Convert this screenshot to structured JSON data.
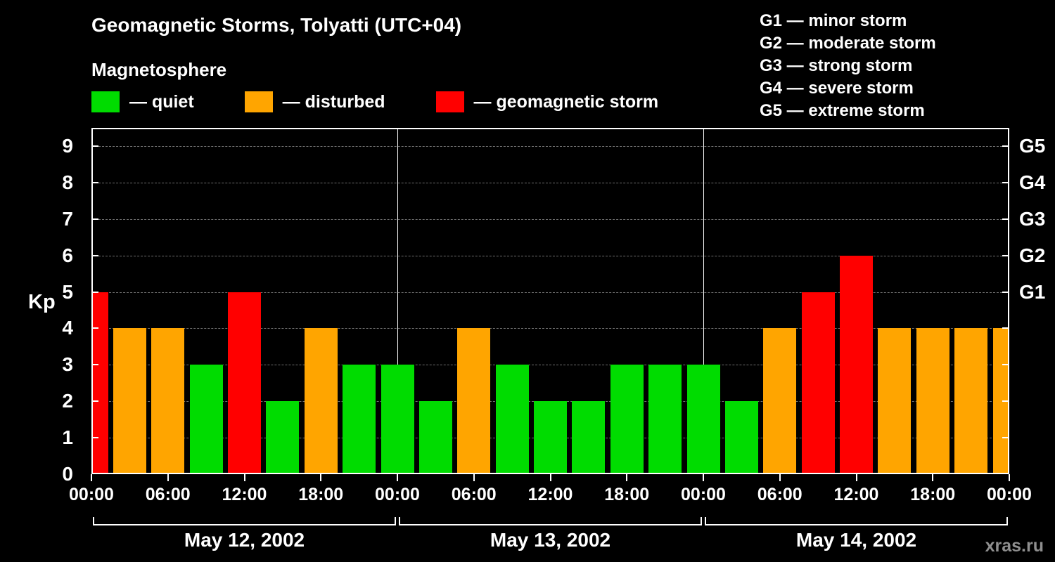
{
  "title": "Geomagnetic Storms, Tolyatti (UTC+04)",
  "subtitle": "Magnetosphere",
  "legend": {
    "quiet": "— quiet",
    "disturbed": "— disturbed",
    "storm": "— geomagnetic storm"
  },
  "g_scale_legend": [
    "G1 — minor storm",
    "G2 — moderate storm",
    "G3 — strong storm",
    "G4 — severe storm",
    "G5 — extreme storm"
  ],
  "watermark": "xras.ru",
  "colors": {
    "background": "#000000",
    "quiet": "#00DC00",
    "disturbed": "#FFA500",
    "storm": "#FF0000",
    "grid": "#707070",
    "axis": "#FFFFFF",
    "watermark": "#8F8F8F"
  },
  "chart_data": {
    "type": "bar",
    "title": "Geomagnetic Storms, Tolyatti (UTC+04)",
    "xlabel": "",
    "ylabel": "Kp",
    "ylim": [
      0,
      9.5
    ],
    "y_ticks": [
      0,
      1,
      2,
      3,
      4,
      5,
      6,
      7,
      8,
      9
    ],
    "x_tick_labels": [
      "00:00",
      "06:00",
      "12:00",
      "18:00",
      "00:00",
      "06:00",
      "12:00",
      "18:00",
      "00:00",
      "06:00",
      "12:00",
      "18:00",
      "00:00"
    ],
    "day_labels": [
      "May 12, 2002",
      "May 13, 2002",
      "May 14, 2002"
    ],
    "right_axis_labels": [
      {
        "kp": 5,
        "label": "G1"
      },
      {
        "kp": 6,
        "label": "G2"
      },
      {
        "kp": 7,
        "label": "G3"
      },
      {
        "kp": 8,
        "label": "G4"
      },
      {
        "kp": 9,
        "label": "G5"
      }
    ],
    "grid": "dashed horizontal line at each integer Kp level",
    "legend_position": "top-left",
    "bar_interval_hours": 3,
    "points": [
      {
        "t": "May 12 00:00",
        "kp": 5,
        "status": "storm"
      },
      {
        "t": "May 12 03:00",
        "kp": 4,
        "status": "disturbed"
      },
      {
        "t": "May 12 06:00",
        "kp": 4,
        "status": "disturbed"
      },
      {
        "t": "May 12 09:00",
        "kp": 3,
        "status": "quiet"
      },
      {
        "t": "May 12 12:00",
        "kp": 5,
        "status": "storm"
      },
      {
        "t": "May 12 15:00",
        "kp": 2,
        "status": "quiet"
      },
      {
        "t": "May 12 18:00",
        "kp": 4,
        "status": "disturbed"
      },
      {
        "t": "May 12 21:00",
        "kp": 3,
        "status": "quiet"
      },
      {
        "t": "May 13 00:00",
        "kp": 3,
        "status": "quiet"
      },
      {
        "t": "May 13 03:00",
        "kp": 2,
        "status": "quiet"
      },
      {
        "t": "May 13 06:00",
        "kp": 4,
        "status": "disturbed"
      },
      {
        "t": "May 13 09:00",
        "kp": 3,
        "status": "quiet"
      },
      {
        "t": "May 13 12:00",
        "kp": 2,
        "status": "quiet"
      },
      {
        "t": "May 13 15:00",
        "kp": 2,
        "status": "quiet"
      },
      {
        "t": "May 13 18:00",
        "kp": 3,
        "status": "quiet"
      },
      {
        "t": "May 13 21:00",
        "kp": 3,
        "status": "quiet"
      },
      {
        "t": "May 14 00:00",
        "kp": 3,
        "status": "quiet"
      },
      {
        "t": "May 14 03:00",
        "kp": 2,
        "status": "quiet"
      },
      {
        "t": "May 14 06:00",
        "kp": 4,
        "status": "disturbed"
      },
      {
        "t": "May 14 09:00",
        "kp": 5,
        "status": "storm"
      },
      {
        "t": "May 14 12:00",
        "kp": 6,
        "status": "storm"
      },
      {
        "t": "May 14 15:00",
        "kp": 4,
        "status": "disturbed"
      },
      {
        "t": "May 14 18:00",
        "kp": 4,
        "status": "disturbed"
      },
      {
        "t": "May 14 21:00",
        "kp": 4,
        "status": "disturbed"
      },
      {
        "t": "May 15 00:00",
        "kp": 4,
        "status": "disturbed"
      }
    ]
  }
}
